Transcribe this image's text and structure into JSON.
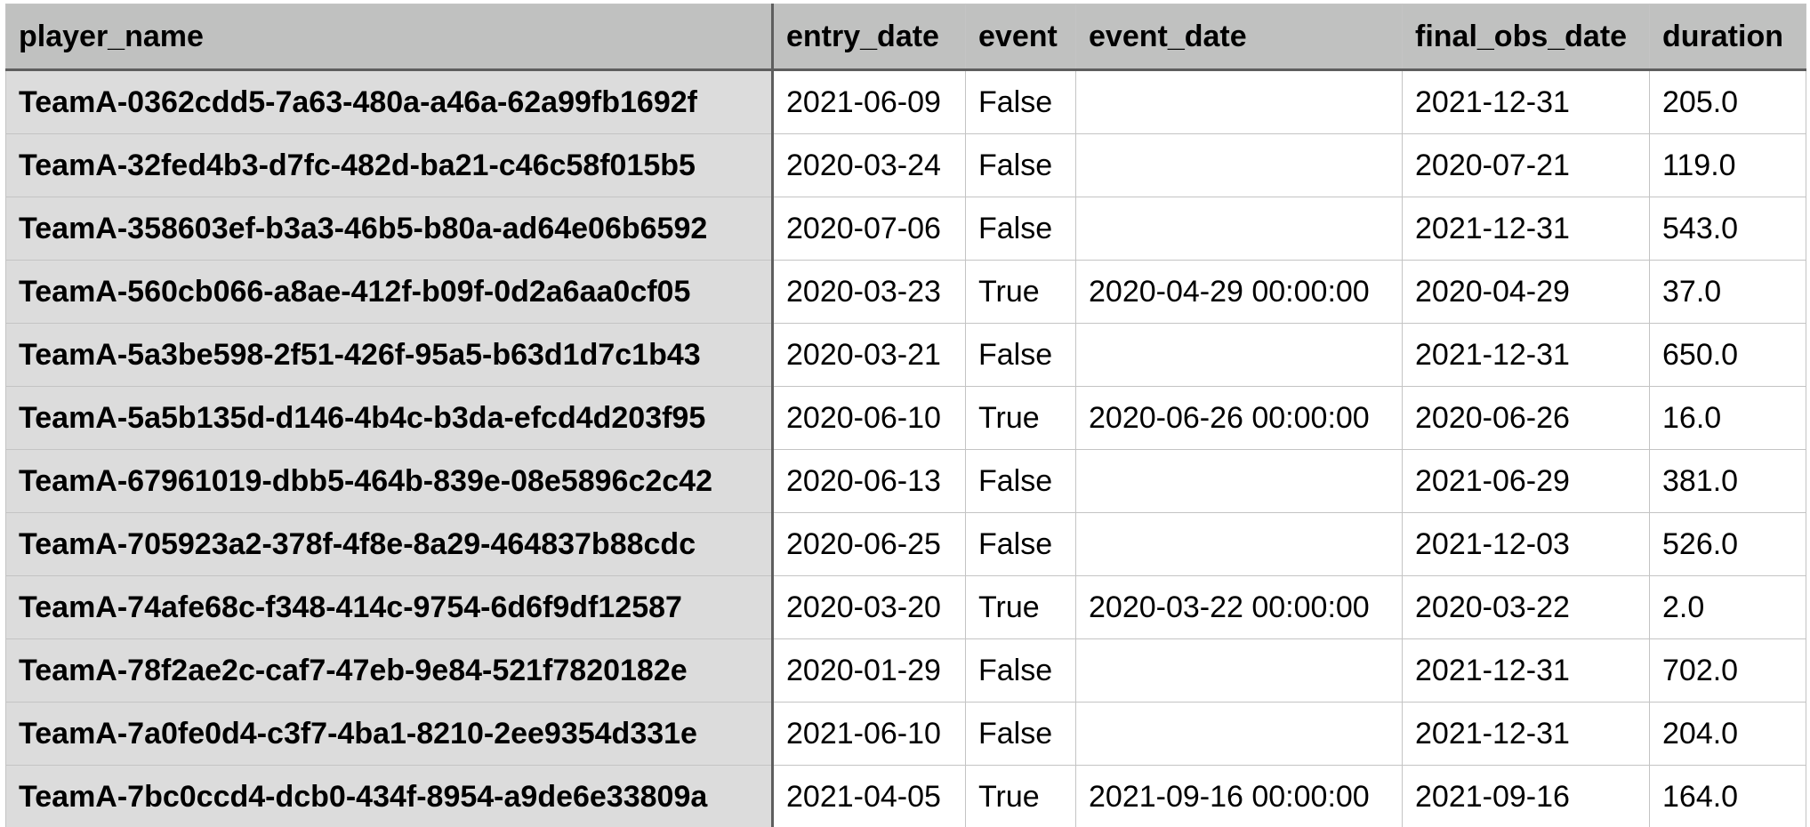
{
  "table": {
    "columns": [
      "player_name",
      "entry_date",
      "event",
      "event_date",
      "final_obs_date",
      "duration"
    ],
    "rows": [
      [
        "TeamA-0362cdd5-7a63-480a-a46a-62a99fb1692f",
        "2021-06-09",
        "False",
        "",
        "2021-12-31",
        "205.0"
      ],
      [
        "TeamA-32fed4b3-d7fc-482d-ba21-c46c58f015b5",
        "2020-03-24",
        "False",
        "",
        "2020-07-21",
        "119.0"
      ],
      [
        "TeamA-358603ef-b3a3-46b5-b80a-ad64e06b6592",
        "2020-07-06",
        "False",
        "",
        "2021-12-31",
        "543.0"
      ],
      [
        "TeamA-560cb066-a8ae-412f-b09f-0d2a6aa0cf05",
        "2020-03-23",
        "True",
        "2020-04-29 00:00:00",
        "2020-04-29",
        "37.0"
      ],
      [
        "TeamA-5a3be598-2f51-426f-95a5-b63d1d7c1b43",
        "2020-03-21",
        "False",
        "",
        "2021-12-31",
        "650.0"
      ],
      [
        "TeamA-5a5b135d-d146-4b4c-b3da-efcd4d203f95",
        "2020-06-10",
        "True",
        "2020-06-26 00:00:00",
        "2020-06-26",
        "16.0"
      ],
      [
        "TeamA-67961019-dbb5-464b-839e-08e5896c2c42",
        "2020-06-13",
        "False",
        "",
        "2021-06-29",
        "381.0"
      ],
      [
        "TeamA-705923a2-378f-4f8e-8a29-464837b88cdc",
        "2020-06-25",
        "False",
        "",
        "2021-12-03",
        "526.0"
      ],
      [
        "TeamA-74afe68c-f348-414c-9754-6d6f9df12587",
        "2020-03-20",
        "True",
        "2020-03-22 00:00:00",
        "2020-03-22",
        "2.0"
      ],
      [
        "TeamA-78f2ae2c-caf7-47eb-9e84-521f7820182e",
        "2020-01-29",
        "False",
        "",
        "2021-12-31",
        "702.0"
      ],
      [
        "TeamA-7a0fe0d4-c3f7-4ba1-8210-2ee9354d331e",
        "2021-06-10",
        "False",
        "",
        "2021-12-31",
        "204.0"
      ],
      [
        "TeamA-7bc0ccd4-dcb0-434f-8954-a9de6e33809a",
        "2021-04-05",
        "True",
        "2021-09-16 00:00:00",
        "2021-09-16",
        "164.0"
      ]
    ]
  }
}
